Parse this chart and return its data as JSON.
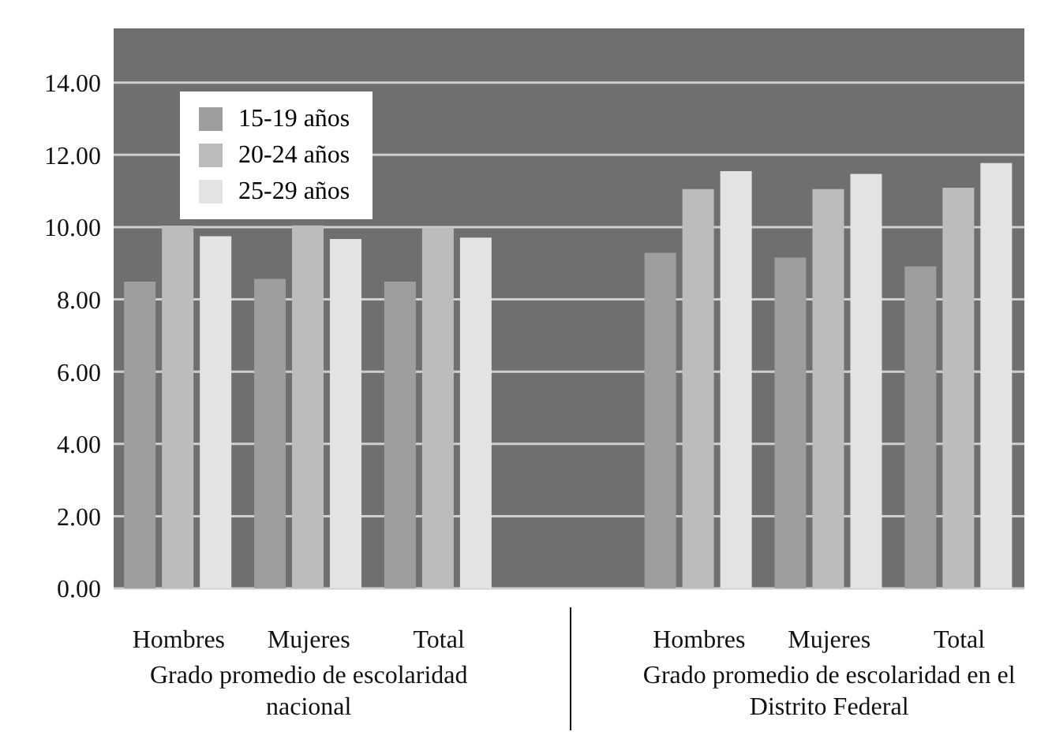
{
  "chart_data": {
    "type": "bar",
    "categories": [
      "Hombres",
      "Mujeres",
      "Total",
      null,
      "Hombres",
      "Mujeres",
      "Total"
    ],
    "series": [
      {
        "name": "15-19 años",
        "color": "#9d9ea0",
        "values": [
          8.49,
          8.57,
          8.49,
          null,
          9.29,
          9.16,
          8.91
        ]
      },
      {
        "name": "20-24 años",
        "color": "#bbbcbe",
        "values": [
          10.04,
          10.05,
          9.99,
          null,
          11.05,
          11.05,
          11.09
        ]
      },
      {
        "name": "25-29 años",
        "color": "#e2e3e5",
        "values": [
          9.75,
          9.67,
          9.71,
          null,
          11.55,
          11.47,
          11.77
        ]
      }
    ],
    "ylim": [
      0,
      15.5
    ],
    "yticks": [
      {
        "value": 0,
        "label": "0.00"
      },
      {
        "value": 2,
        "label": "2.00"
      },
      {
        "value": 4,
        "label": "4.00"
      },
      {
        "value": 6,
        "label": "6.00"
      },
      {
        "value": 8,
        "label": "8.00"
      },
      {
        "value": 10,
        "label": "10.00"
      },
      {
        "value": 12,
        "label": "12.00"
      },
      {
        "value": 14,
        "label": "14.00"
      }
    ],
    "grid": "y",
    "legend": "top left",
    "annotations": [
      "Grado promedio de escolaridad nacional",
      "Grado promedio de escolaridad en el Distrito Federal"
    ]
  }
}
